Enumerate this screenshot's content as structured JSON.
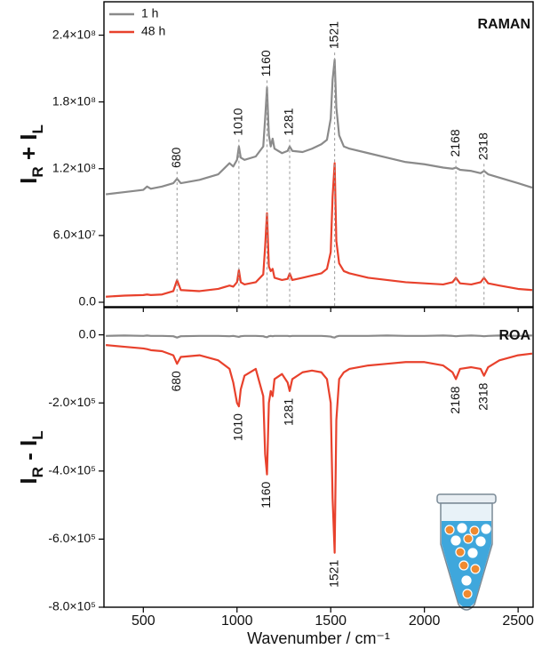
{
  "chart_data": [
    {
      "type": "line",
      "panel_label": "RAMAN",
      "y_label": [
        "I",
        "R",
        " + I",
        "L"
      ],
      "legend": "upper left",
      "ylim": [
        -4000000.0,
        270000000.0
      ],
      "yticks": [
        {
          "value": 0,
          "label": "0.0"
        },
        {
          "value": 60000000.0,
          "label": "6.0×10⁷"
        },
        {
          "value": 120000000.0,
          "label": "1.2×10⁸"
        },
        {
          "value": 180000000.0,
          "label": "1.8×10⁸"
        },
        {
          "value": 240000000.0,
          "label": "2.4×10⁸"
        }
      ],
      "peaks": [
        680,
        1010,
        1160,
        1281,
        1521,
        2168,
        2318
      ],
      "x": [
        300,
        400,
        500,
        520,
        540,
        600,
        660,
        680,
        700,
        800,
        900,
        960,
        980,
        1000,
        1010,
        1020,
        1040,
        1100,
        1140,
        1150,
        1160,
        1170,
        1180,
        1190,
        1200,
        1240,
        1270,
        1281,
        1295,
        1350,
        1400,
        1450,
        1480,
        1500,
        1510,
        1521,
        1530,
        1545,
        1570,
        1600,
        1700,
        1800,
        1900,
        2000,
        2100,
        2150,
        2168,
        2190,
        2250,
        2300,
        2318,
        2340,
        2400,
        2500,
        2575
      ],
      "series": [
        {
          "name": "1 h",
          "color": "#8a8a8a",
          "values": [
            97000000.0,
            99000000.0,
            101000000.0,
            104000000.0,
            102000000.0,
            104000000.0,
            107000000.0,
            111000000.0,
            107000000.0,
            110000000.0,
            115000000.0,
            125000000.0,
            122000000.0,
            128000000.0,
            140000000.0,
            130000000.0,
            128000000.0,
            131000000.0,
            140000000.0,
            165000000.0,
            193000000.0,
            150000000.0,
            140000000.0,
            147000000.0,
            138000000.0,
            134000000.0,
            136000000.0,
            140000000.0,
            136000000.0,
            135000000.0,
            138000000.0,
            142000000.0,
            146000000.0,
            165000000.0,
            200000000.0,
            218000000.0,
            175000000.0,
            150000000.0,
            140000000.0,
            138000000.0,
            134000000.0,
            130000000.0,
            126000000.0,
            124000000.0,
            121000000.0,
            120000000.0,
            121000000.0,
            119000000.0,
            118000000.0,
            116000000.0,
            118000000.0,
            115000000.0,
            112000000.0,
            107000000.0,
            103000000.0
          ]
        },
        {
          "name": "48 h",
          "color": "#e8412c",
          "values": [
            5000000.0,
            6000000.0,
            6500000.0,
            7000000.0,
            6500000.0,
            7000000.0,
            10000000.0,
            20000000.0,
            11000000.0,
            10000000.0,
            12000000.0,
            15000000.0,
            14000000.0,
            18000000.0,
            29000000.0,
            18000000.0,
            16000000.0,
            18000000.0,
            25000000.0,
            50000000.0,
            80000000.0,
            32000000.0,
            28000000.0,
            30000000.0,
            22000000.0,
            20000000.0,
            21000000.0,
            26000000.0,
            20000000.0,
            22000000.0,
            24000000.0,
            26000000.0,
            30000000.0,
            45000000.0,
            95000000.0,
            125000000.0,
            55000000.0,
            35000000.0,
            28000000.0,
            26000000.0,
            22000000.0,
            20000000.0,
            18000000.0,
            17000000.0,
            16000000.0,
            18000000.0,
            22000000.0,
            17000000.0,
            16000000.0,
            18000000.0,
            22000000.0,
            17000000.0,
            15000000.0,
            12000000.0,
            11000000.0
          ]
        }
      ]
    },
    {
      "type": "line",
      "panel_label": "ROA",
      "y_label": [
        "I",
        "R",
        " - I",
        "L"
      ],
      "x_label": "Wavenumber / cm⁻¹",
      "xlim": [
        290,
        2580
      ],
      "xticks": [
        500,
        1000,
        1500,
        2000,
        2500
      ],
      "ylim": [
        -800000.0,
        80000.0
      ],
      "yticks": [
        {
          "value": 0,
          "label": "0.0"
        },
        {
          "value": -200000.0,
          "label": "-2.0×10⁵"
        },
        {
          "value": -400000.0,
          "label": "-4.0×10⁵"
        },
        {
          "value": -600000.0,
          "label": "-6.0×10⁵"
        },
        {
          "value": -800000.0,
          "label": "-8.0×10⁵"
        }
      ],
      "peaks": [
        680,
        1010,
        1160,
        1281,
        1521,
        2168,
        2318
      ],
      "x": [
        300,
        400,
        500,
        520,
        540,
        600,
        660,
        680,
        700,
        800,
        900,
        960,
        980,
        1000,
        1010,
        1020,
        1040,
        1100,
        1140,
        1150,
        1160,
        1170,
        1180,
        1190,
        1200,
        1240,
        1270,
        1281,
        1295,
        1350,
        1400,
        1450,
        1480,
        1500,
        1510,
        1521,
        1530,
        1545,
        1570,
        1600,
        1700,
        1800,
        1900,
        2000,
        2100,
        2150,
        2168,
        2190,
        2250,
        2300,
        2318,
        2340,
        2400,
        2500,
        2575
      ],
      "series": [
        {
          "name": "1 h",
          "color": "#8a8a8a",
          "values": [
            -3000.0,
            -2000.0,
            -3000.0,
            -2000.0,
            -3000.0,
            -3000.0,
            -4000.0,
            -8000.0,
            -4000.0,
            -3000.0,
            -3000.0,
            -4000.0,
            -3000.0,
            -5000.0,
            -6000.0,
            -4000.0,
            -3000.0,
            -3000.0,
            -4000.0,
            -6000.0,
            -7000.0,
            -4000.0,
            -3000.0,
            -4000.0,
            -3000.0,
            -3000.0,
            -3000.0,
            -4000.0,
            -3000.0,
            -3000.0,
            -3000.0,
            -3000.0,
            -4000.0,
            -5000.0,
            -7000.0,
            -8000.0,
            -5000.0,
            -3000.0,
            -3000.0,
            -3000.0,
            -3000.0,
            -2000.0,
            -3000.0,
            -3000.0,
            -2000.0,
            -3000.0,
            -4000.0,
            -3000.0,
            -2000.0,
            -3000.0,
            -4000.0,
            -3000.0,
            -2000.0,
            -3000.0,
            -2000.0
          ]
        },
        {
          "name": "48 h",
          "color": "#e8412c",
          "values": [
            -30000.0,
            -35000.0,
            -40000.0,
            -42000.0,
            -45000.0,
            -48000.0,
            -60000.0,
            -85000.0,
            -65000.0,
            -60000.0,
            -75000.0,
            -100000.0,
            -140000.0,
            -200000.0,
            -210000.0,
            -160000.0,
            -120000.0,
            -100000.0,
            -180000.0,
            -350000.0,
            -410000.0,
            -200000.0,
            -165000.0,
            -180000.0,
            -130000.0,
            -115000.0,
            -140000.0,
            -165000.0,
            -130000.0,
            -110000.0,
            -105000.0,
            -110000.0,
            -130000.0,
            -200000.0,
            -480000.0,
            -640000.0,
            -250000.0,
            -130000.0,
            -110000.0,
            -100000.0,
            -90000.0,
            -85000.0,
            -80000.0,
            -80000.0,
            -90000.0,
            -110000.0,
            -130000.0,
            -100000.0,
            -95000.0,
            -100000.0,
            -120000.0,
            -95000.0,
            -75000.0,
            -60000.0,
            -55000.0
          ]
        }
      ]
    }
  ]
}
